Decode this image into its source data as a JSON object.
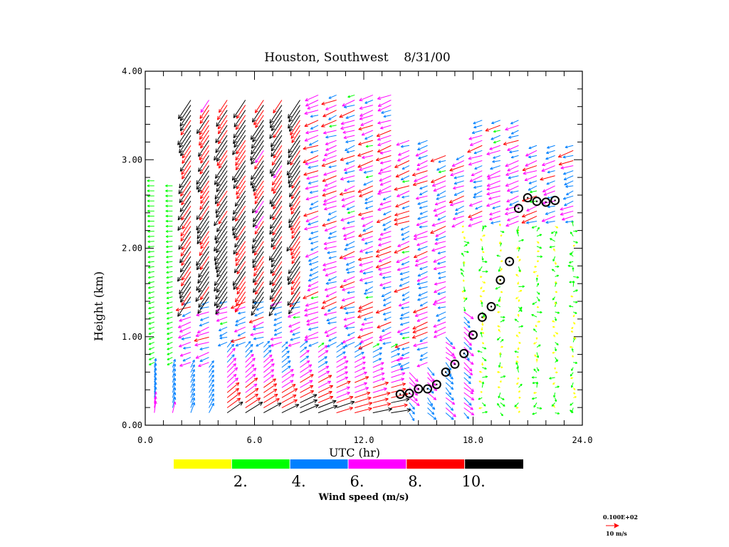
{
  "chart_data": {
    "type": "wind-profiler-time-height",
    "title": "Houston, Southwest    8/31/00",
    "xlabel": "UTC (hr)",
    "ylabel": "Height (km)",
    "xlim": [
      0,
      24
    ],
    "ylim": [
      0,
      4
    ],
    "x_ticks": [
      0,
      6,
      12,
      18,
      24
    ],
    "x_tick_labels": [
      "0.0",
      "6.0",
      "12.0",
      "18.0",
      "24.0"
    ],
    "x_minor_step": 1,
    "y_ticks": [
      0,
      1,
      2,
      3,
      4
    ],
    "y_tick_labels": [
      "0.00",
      "1.00",
      "2.00",
      "3.00",
      "4.00"
    ],
    "y_minor_step": 0.2,
    "colorbar": {
      "label": "Wind speed (m/s)",
      "colors": [
        "#ffff00",
        "#00ff00",
        "#0080ff",
        "#ff00ff",
        "#ff0000",
        "#000000"
      ],
      "boundaries": [
        0,
        2,
        4,
        6,
        8,
        10,
        12
      ],
      "tick_labels": [
        "2.",
        "4.",
        "6.",
        "8.",
        "10."
      ]
    },
    "reference_vector": {
      "scale_text": "0.100E+02",
      "label": "10 m/s",
      "color": "#ff0000"
    },
    "wind_columns_hours": [
      0.5,
      1.5,
      2.5,
      3.5,
      4.5,
      5.5,
      6.5,
      7.5,
      8.5,
      9.5,
      10.5,
      11.5,
      12.5,
      13.5,
      14.5,
      15.5,
      16.5,
      17.5,
      18.5,
      19.5,
      20.5,
      21.5,
      22.5,
      23.5
    ],
    "mixing_height_markers": {
      "marker": "circle-dot",
      "color": "#000000",
      "points": [
        {
          "hour": 14.0,
          "height_km": 0.35
        },
        {
          "hour": 14.5,
          "height_km": 0.36
        },
        {
          "hour": 15.0,
          "height_km": 0.41
        },
        {
          "hour": 15.5,
          "height_km": 0.41
        },
        {
          "hour": 16.0,
          "height_km": 0.46
        },
        {
          "hour": 16.5,
          "height_km": 0.6
        },
        {
          "hour": 17.0,
          "height_km": 0.69
        },
        {
          "hour": 17.5,
          "height_km": 0.81
        },
        {
          "hour": 18.0,
          "height_km": 1.02
        },
        {
          "hour": 18.5,
          "height_km": 1.22
        },
        {
          "hour": 19.0,
          "height_km": 1.34
        },
        {
          "hour": 19.5,
          "height_km": 1.64
        },
        {
          "hour": 20.0,
          "height_km": 1.85
        },
        {
          "hour": 20.5,
          "height_km": 2.45
        },
        {
          "hour": 21.0,
          "height_km": 2.57
        },
        {
          "hour": 21.5,
          "height_km": 2.53
        },
        {
          "hour": 22.0,
          "height_km": 2.52
        },
        {
          "hour": 22.5,
          "height_km": 2.54
        }
      ]
    },
    "wind_regimes_description": [
      {
        "hours": [
          0,
          4
        ],
        "levels_km": [
          0.1,
          0.6
        ],
        "speed_ms": 7,
        "dir": "from south (northward)"
      },
      {
        "hours": [
          2,
          6
        ],
        "levels_km": [
          1.5,
          3.0
        ],
        "speed_ms": 11,
        "dir": "from northeast"
      },
      {
        "hours": [
          9,
          14
        ],
        "levels_km": [
          0.1,
          0.4
        ],
        "speed_ms": 11,
        "dir": "from west (eastward)"
      },
      {
        "hours": [
          17,
          24
        ],
        "levels_km": [
          0.1,
          2.0
        ],
        "speed_ms": 1.5,
        "dir": "light and variable"
      }
    ]
  }
}
